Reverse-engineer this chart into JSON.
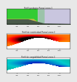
{
  "title1": "Perfil geologico Puma-Leona 1",
  "title2": "Perfil de resistividad Puma-Leona 1",
  "title3": "Perfil de cargabilidad Puma-Leona 1",
  "x_ticks": [
    200,
    400,
    600,
    800,
    1000
  ],
  "bg_color": "#e8e8e8",
  "panel_bg": "#ffffff"
}
